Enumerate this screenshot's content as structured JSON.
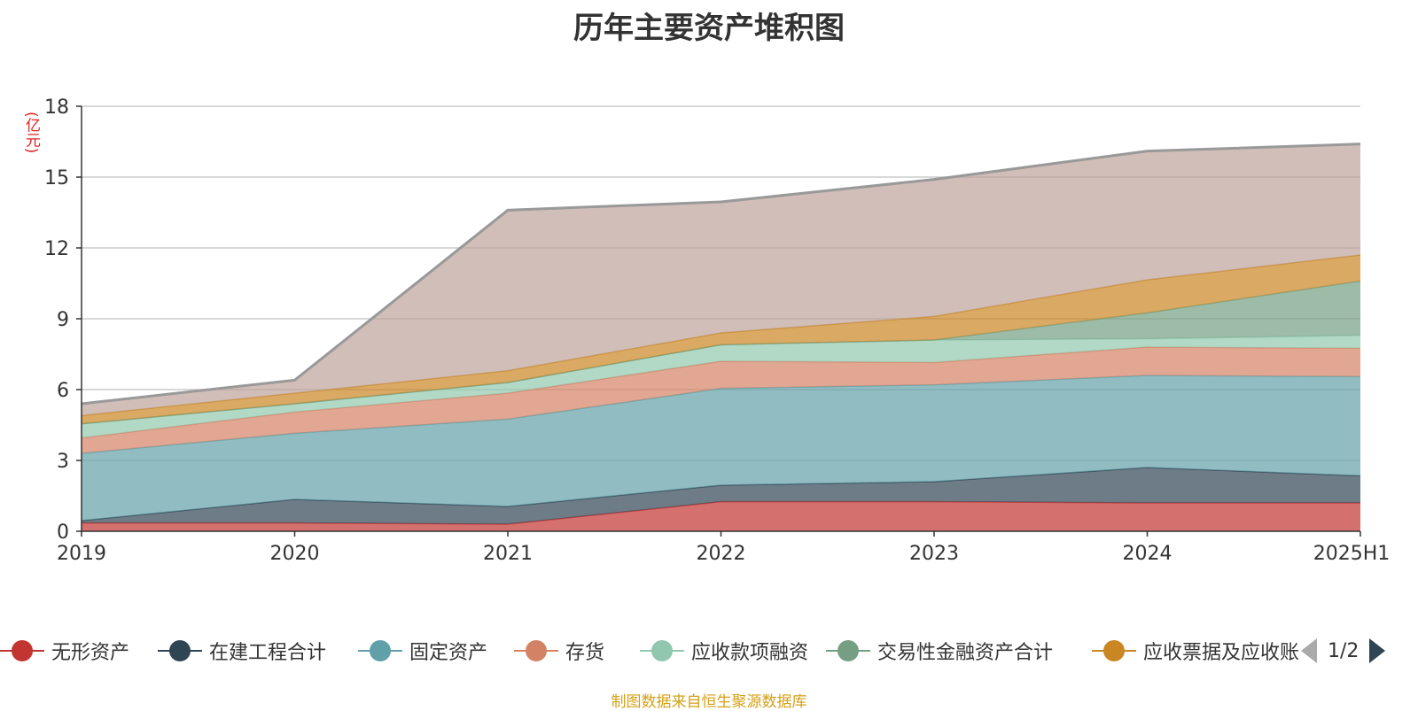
{
  "chart_data": {
    "type": "area",
    "title": "历年主要资产堆积图",
    "unit": "(亿元)",
    "stacked": true,
    "categories": [
      "2019",
      "2020",
      "2021",
      "2022",
      "2023",
      "2024",
      "2025H1"
    ],
    "ylim": [
      0,
      18
    ],
    "yticks": [
      "0",
      "3",
      "6",
      "9",
      "12",
      "15",
      "18"
    ],
    "grid": true,
    "legend_position": "bottom",
    "series": [
      {
        "name": "无形资产",
        "color": "#c23531",
        "values": [
          0.35,
          0.35,
          0.3,
          1.25,
          1.25,
          1.2,
          1.2
        ]
      },
      {
        "name": "在建工程合计",
        "color": "#2f4554",
        "values": [
          0.1,
          1.0,
          0.75,
          0.7,
          0.85,
          1.5,
          1.15
        ]
      },
      {
        "name": "固定资产",
        "color": "#61a0a8",
        "values": [
          2.85,
          2.8,
          3.7,
          4.1,
          4.1,
          3.9,
          4.2
        ]
      },
      {
        "name": "存货",
        "color": "#d48265",
        "values": [
          0.65,
          0.9,
          1.1,
          1.15,
          0.95,
          1.2,
          1.2
        ]
      },
      {
        "name": "应收款项融资",
        "color": "#91c7ae",
        "values": [
          0.6,
          0.35,
          0.45,
          0.7,
          0.95,
          0.35,
          0.55
        ]
      },
      {
        "name": "交易性金融资产合计",
        "color": "#749f83",
        "values": [
          0,
          0,
          0,
          0,
          0,
          1.1,
          2.3
        ]
      },
      {
        "name": "应收票据及应收账",
        "color": "#ca8622",
        "values": [
          0.35,
          0.45,
          0.5,
          0.5,
          1.0,
          1.4,
          1.1
        ]
      },
      {
        "name": "",
        "color": "#bda29a",
        "values": [
          0.5,
          0.55,
          6.8,
          5.55,
          5.8,
          5.45,
          4.7
        ]
      }
    ]
  },
  "legend": {
    "items": [
      {
        "label": "无形资产",
        "color": "#c23531"
      },
      {
        "label": "在建工程合计",
        "color": "#2f4554"
      },
      {
        "label": "固定资产",
        "color": "#61a0a8"
      },
      {
        "label": "存货",
        "color": "#d48265"
      },
      {
        "label": "应收款项融资",
        "color": "#91c7ae"
      },
      {
        "label": "交易性金融资产合计",
        "color": "#749f83"
      },
      {
        "label": "应收票据及应收账",
        "color": "#ca8622"
      }
    ],
    "page": "1/2"
  },
  "source": "制图数据来自恒生聚源数据库"
}
